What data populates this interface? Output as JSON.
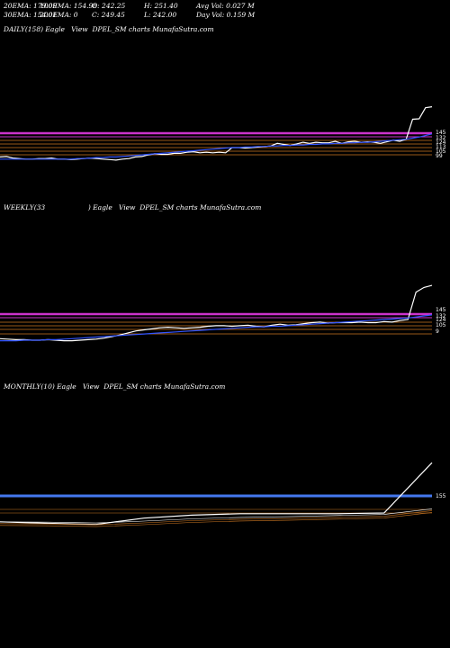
{
  "header": {
    "row1": [
      "20EMA: 179.09",
      "100EMA: 154.98",
      "O: 242.25",
      "H: 251.40",
      "Avg Vol: 0.027 M"
    ],
    "row2": [
      "30EMA: 154.01",
      "200EMA: 0",
      "C: 249.45",
      "L: 242.00",
      "Day Vol: 0.159 M"
    ]
  },
  "panels": {
    "daily_title": "DAILY(158) Eagle   View  DPEL_SM charts MunafaSutra.com",
    "weekly_title": "WEEKLY(33                    ) Eagle   View  DPEL_SM charts MunafaSutra.com",
    "monthly_title": "MONTHLY(10) Eagle   View  DPEL_SM charts MunafaSutra.com"
  },
  "colors": {
    "price": "#ffffff",
    "ema_fast": "#3355ff",
    "resistance": "#cc33cc",
    "support": "#cc7722",
    "monthly_band": "#4477ee"
  },
  "chart_data": [
    {
      "type": "line",
      "panel": "daily",
      "title": "DAILY(158) Eagle View DPEL_SM charts MunafaSutra.com",
      "level_labels": [
        "145",
        "132",
        "124",
        "113",
        "105",
        "99"
      ],
      "series": [
        {
          "values": [
            103,
            104,
            101,
            100,
            99,
            99,
            100,
            100,
            101,
            99,
            99,
            98,
            99,
            100,
            101,
            100,
            99,
            98,
            97,
            99,
            100,
            103,
            104,
            107,
            109,
            108,
            108,
            110,
            110,
            112,
            113,
            111,
            112,
            111,
            112,
            111,
            121,
            121,
            120,
            121,
            122,
            123,
            124,
            129,
            127,
            125,
            128,
            131,
            129,
            131,
            130,
            130,
            133,
            129,
            132,
            133,
            131,
            132,
            131,
            129,
            132,
            135,
            133,
            137,
            175,
            176,
            197,
            199
          ]
        },
        {
          "values": [
            99,
            99,
            99,
            99,
            99,
            99,
            99,
            99,
            99,
            99,
            99,
            99,
            100,
            100,
            101,
            102,
            102,
            103,
            103,
            104,
            105,
            106,
            107,
            108,
            109,
            110,
            111,
            112,
            113,
            114,
            115,
            116,
            117,
            118,
            119,
            120,
            121,
            121,
            122,
            122,
            123,
            123,
            124,
            124,
            125,
            125,
            126,
            126,
            127,
            127,
            128,
            128,
            129,
            129,
            130,
            130,
            131,
            131,
            132,
            133,
            134,
            135,
            136,
            137,
            139,
            141,
            144,
            147
          ]
        }
      ]
    },
    {
      "type": "line",
      "panel": "weekly",
      "title": "WEEKLY(33) Eagle View DPEL_SM charts MunafaSutra.com",
      "level_labels": [
        "145",
        "132",
        "124",
        "105",
        "9"
      ],
      "series": [
        {
          "values": [
            100,
            99,
            98,
            98,
            97,
            97,
            98,
            97,
            96,
            96,
            97,
            98,
            99,
            101,
            104,
            107,
            111,
            115,
            117,
            119,
            121,
            122,
            121,
            120,
            121,
            122,
            124,
            125,
            125,
            124,
            125,
            126,
            124,
            123,
            126,
            128,
            126,
            127,
            129,
            131,
            132,
            130,
            131,
            131,
            131,
            132,
            131,
            131,
            133,
            132,
            135,
            137,
            190,
            199,
            203
          ]
        },
        {
          "values": [
            96,
            96,
            96,
            97,
            97,
            97,
            98,
            98,
            99,
            100,
            101,
            102,
            103,
            104,
            105,
            106,
            107,
            108,
            109,
            110,
            111,
            112,
            113,
            114,
            115,
            116,
            117,
            118,
            119,
            120,
            121,
            122,
            123,
            123,
            124,
            124,
            125,
            126,
            127,
            128,
            129,
            130,
            131,
            132,
            133,
            134,
            135,
            136,
            137,
            138,
            139,
            140,
            142,
            144,
            146
          ]
        }
      ]
    },
    {
      "type": "line",
      "panel": "monthly",
      "title": "MONTHLY(10) Eagle View DPEL_SM charts MunafaSutra.com",
      "level_labels": [
        "155"
      ],
      "series": [
        {
          "values": [
            100,
            96,
            93,
            110,
            118,
            122,
            122,
            122,
            124,
            260
          ]
        },
        {
          "values": [
            100,
            99,
            97,
            102,
            108,
            112,
            114,
            117,
            120,
            135
          ]
        }
      ]
    }
  ]
}
